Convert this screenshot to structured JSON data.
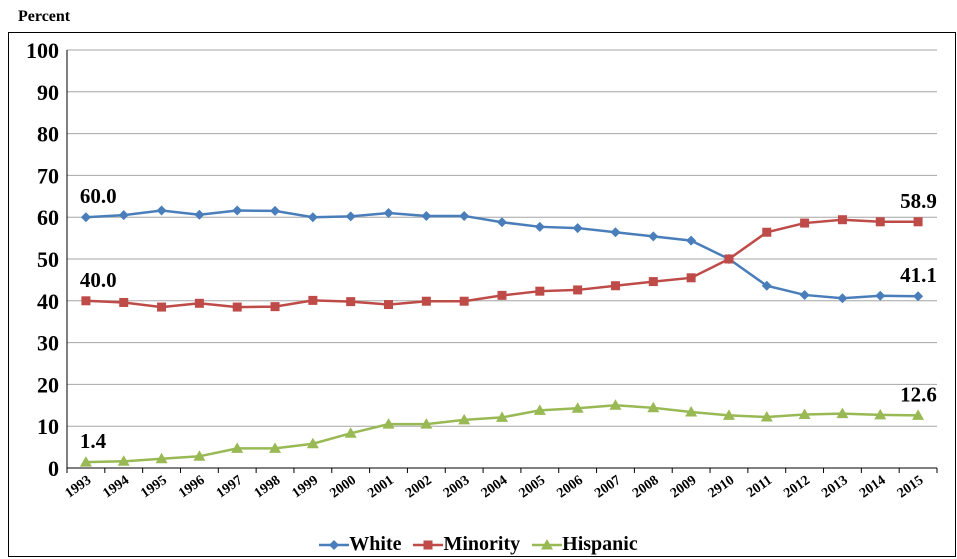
{
  "chart_data": {
    "type": "line",
    "title": "",
    "ylabel": "Percent",
    "xlabel": "",
    "ylim": [
      0,
      100
    ],
    "yticks": [
      0,
      10,
      20,
      30,
      40,
      50,
      60,
      70,
      80,
      90,
      100
    ],
    "grid": true,
    "legend": "bottom",
    "categories": [
      "1993",
      "1994",
      "1995",
      "1996",
      "1997",
      "1998",
      "1999",
      "2000",
      "2001",
      "2002",
      "2003",
      "2004",
      "2005",
      "2006",
      "2007",
      "2008",
      "2009",
      "2910",
      "2011",
      "2012",
      "2013",
      "2014",
      "2015"
    ],
    "series": [
      {
        "name": "White",
        "color": "#4a7ebb",
        "marker": "diamond",
        "values": [
          60.0,
          60.5,
          61.6,
          60.6,
          61.6,
          61.5,
          60.0,
          60.2,
          61.0,
          60.3,
          60.3,
          58.8,
          57.7,
          57.4,
          56.4,
          55.4,
          54.4,
          50.0,
          43.6,
          41.4,
          40.6,
          41.2,
          41.1
        ],
        "labels": {
          "0": "60.0",
          "22": "41.1"
        }
      },
      {
        "name": "Minority",
        "color": "#be4b48",
        "marker": "square",
        "values": [
          40.0,
          39.6,
          38.5,
          39.4,
          38.5,
          38.6,
          40.1,
          39.8,
          39.1,
          39.9,
          39.9,
          41.3,
          42.3,
          42.6,
          43.6,
          44.6,
          45.5,
          50.0,
          56.4,
          58.6,
          59.4,
          58.9,
          58.9
        ],
        "labels": {
          "0": "40.0",
          "22": "58.9"
        }
      },
      {
        "name": "Hispanic",
        "color": "#98b954",
        "marker": "triangle",
        "values": [
          1.4,
          1.6,
          2.2,
          2.8,
          4.7,
          4.7,
          5.8,
          8.3,
          10.5,
          10.5,
          11.5,
          12.1,
          13.8,
          14.3,
          15.0,
          14.4,
          13.4,
          12.6,
          12.2,
          12.8,
          13.0,
          12.7,
          12.6
        ],
        "labels": {
          "0": "1.4",
          "22": "12.6"
        }
      }
    ]
  }
}
